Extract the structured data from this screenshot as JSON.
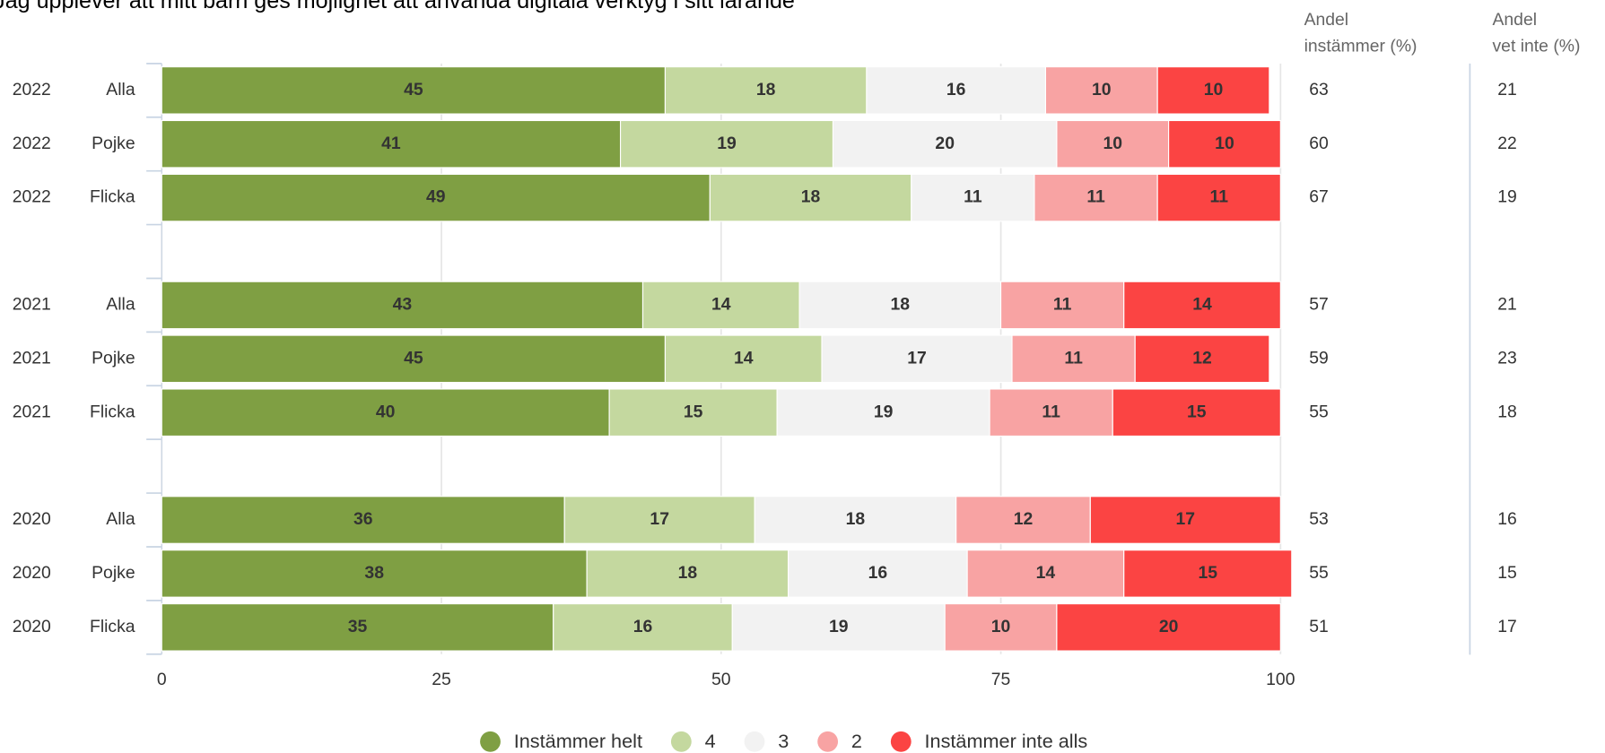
{
  "chart_data": {
    "type": "stacked-bar-horizontal",
    "title": "Jag upplever att mitt barn ges möjlighet att använda digitala verktyg i sitt lärande",
    "years": [
      "2022",
      "2022",
      "2022",
      "2021",
      "2021",
      "2021",
      "2020",
      "2020",
      "2020"
    ],
    "categories": [
      "Alla",
      "Pojke",
      "Flicka",
      "Alla",
      "Pojke",
      "Flicka",
      "Alla",
      "Pojke",
      "Flicka"
    ],
    "series": [
      {
        "name": "Instämmer helt",
        "color": "#7f9f43",
        "label_color": "#ffffff",
        "values": [
          45,
          41,
          49,
          43,
          45,
          40,
          36,
          38,
          35
        ]
      },
      {
        "name": "4",
        "color": "#c4d89f",
        "label_color": "#ffffff",
        "values": [
          18,
          19,
          18,
          14,
          14,
          15,
          17,
          18,
          16
        ]
      },
      {
        "name": "3",
        "color": "#f2f2f2",
        "label_color": "#000000",
        "values": [
          16,
          20,
          11,
          18,
          17,
          19,
          18,
          16,
          19
        ]
      },
      {
        "name": "2",
        "color": "#f8a3a3",
        "label_color": "#000000",
        "values": [
          10,
          10,
          11,
          11,
          11,
          11,
          12,
          14,
          10
        ]
      },
      {
        "name": "Instämmer inte alls",
        "color": "#fb4443",
        "label_color": "#ffffff",
        "values": [
          10,
          10,
          11,
          14,
          12,
          15,
          17,
          15,
          20
        ]
      }
    ],
    "xlim": [
      0,
      100
    ],
    "xticks": [
      0,
      25,
      50,
      75,
      100
    ],
    "grid": true,
    "legend": "bottom",
    "columns": [
      {
        "header": [
          "Andel",
          "instämmer (%)"
        ],
        "values": [
          63,
          60,
          67,
          57,
          59,
          55,
          53,
          55,
          51
        ]
      },
      {
        "header": [
          "Andel",
          "vet inte (%)"
        ],
        "values": [
          21,
          22,
          19,
          21,
          23,
          18,
          16,
          15,
          17
        ]
      }
    ]
  }
}
